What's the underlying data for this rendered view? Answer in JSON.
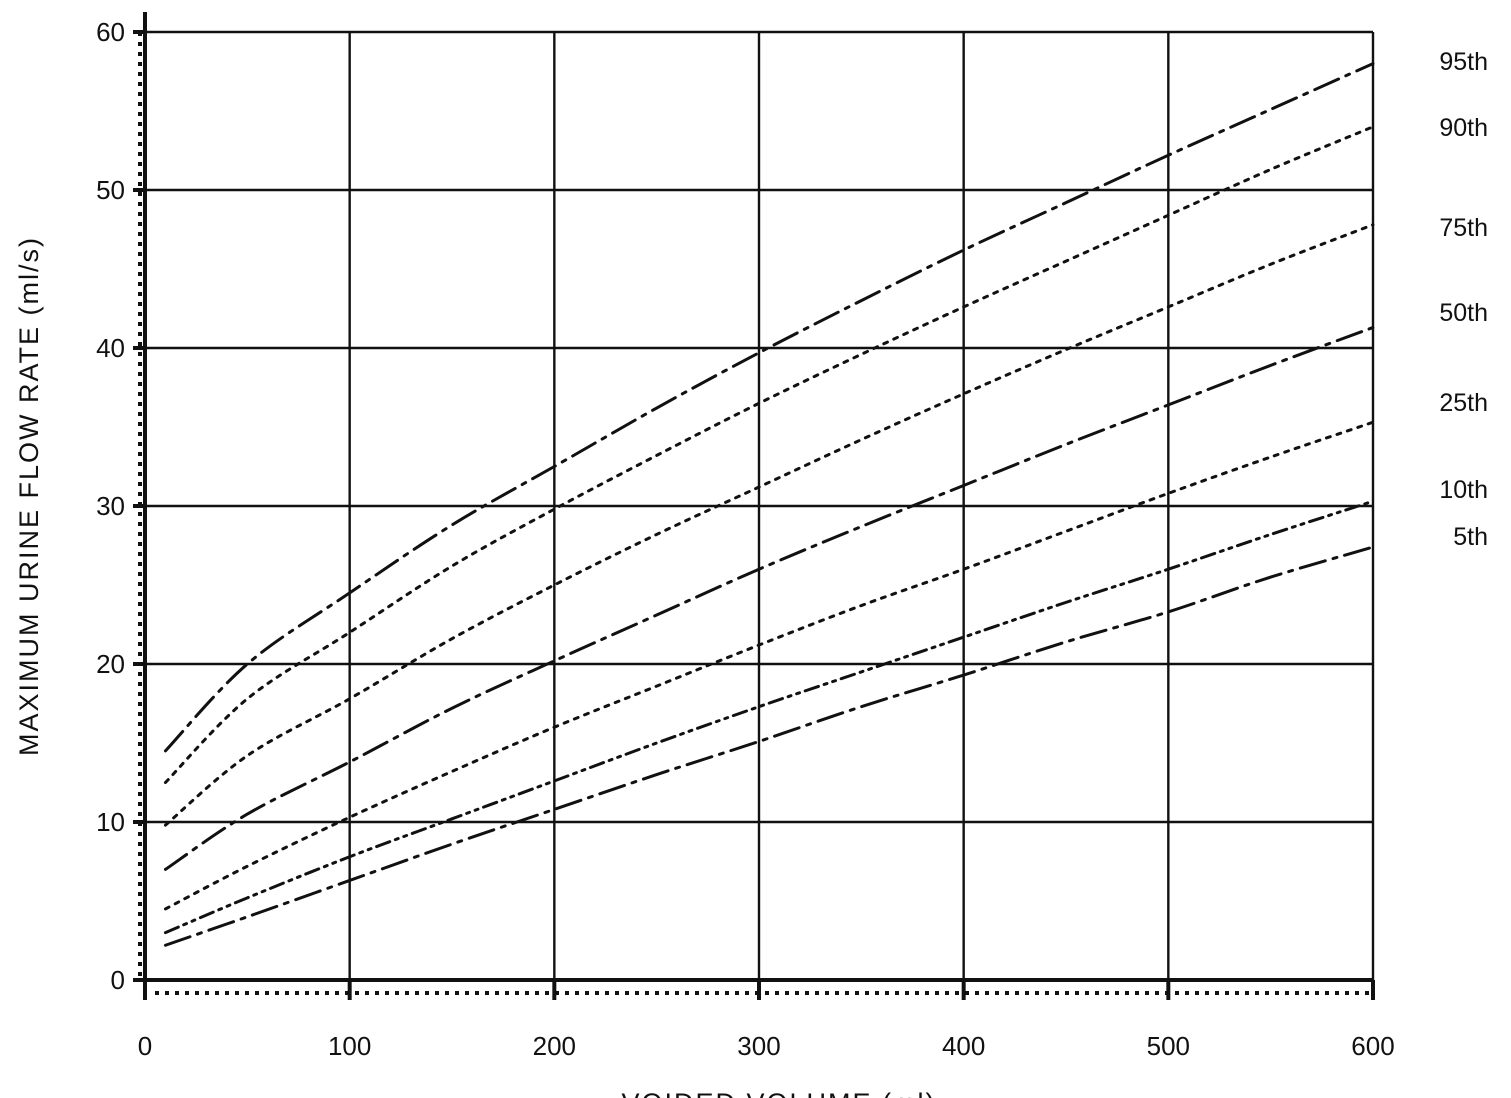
{
  "chart_data": {
    "type": "line",
    "title": "",
    "xlabel": "VOIDED  VOLUME (ml)",
    "ylabel": "MAXIMUM  URINE  FLOW  RATE  (ml/s)",
    "xlim": [
      0,
      600
    ],
    "ylim": [
      0,
      60
    ],
    "x_ticks": [
      0,
      100,
      200,
      300,
      400,
      500,
      600
    ],
    "y_ticks": [
      0,
      10,
      20,
      30,
      40,
      50,
      60
    ],
    "x_tick_labels": [
      "0",
      "100",
      "200",
      "300",
      "400",
      "500",
      "600"
    ],
    "y_tick_labels": [
      "0",
      "10",
      "20",
      "30",
      "40",
      "50",
      "60"
    ],
    "grid": true,
    "legend": "series labels at right end of lines",
    "x": [
      10,
      50,
      100,
      150,
      200,
      250,
      300,
      350,
      400,
      450,
      500,
      550,
      600
    ],
    "series": [
      {
        "name": "95th",
        "style": "dash-dot",
        "values": [
          14.5,
          20.0,
          24.5,
          28.8,
          32.5,
          36.2,
          39.7,
          43.0,
          46.2,
          49.2,
          52.2,
          55.1,
          58.0
        ]
      },
      {
        "name": "90th",
        "style": "dotted",
        "values": [
          12.5,
          17.8,
          22.0,
          26.2,
          29.8,
          33.2,
          36.5,
          39.6,
          42.6,
          45.5,
          48.4,
          51.3,
          54.0
        ]
      },
      {
        "name": "75th",
        "style": "dotted",
        "values": [
          9.8,
          14.2,
          17.8,
          21.6,
          25.0,
          28.2,
          31.2,
          34.2,
          37.1,
          39.9,
          42.6,
          45.3,
          47.8
        ]
      },
      {
        "name": "50th",
        "style": "dash-dot",
        "values": [
          7.0,
          10.5,
          13.8,
          17.2,
          20.2,
          23.1,
          26.0,
          28.7,
          31.3,
          33.9,
          36.4,
          38.9,
          41.3
        ]
      },
      {
        "name": "25th",
        "style": "dotted",
        "values": [
          4.5,
          7.2,
          10.3,
          13.2,
          16.0,
          18.6,
          21.2,
          23.7,
          26.0,
          28.4,
          30.8,
          33.1,
          35.3
        ]
      },
      {
        "name": "10th",
        "style": "dash-dot-dot",
        "values": [
          3.0,
          5.2,
          7.8,
          10.2,
          12.6,
          15.0,
          17.3,
          19.5,
          21.7,
          23.9,
          26.0,
          28.2,
          30.3
        ]
      },
      {
        "name": "5th",
        "style": "dash-dot",
        "values": [
          2.2,
          4.0,
          6.3,
          8.6,
          10.8,
          13.0,
          15.1,
          17.3,
          19.3,
          21.4,
          23.3,
          25.5,
          27.4
        ]
      }
    ]
  }
}
